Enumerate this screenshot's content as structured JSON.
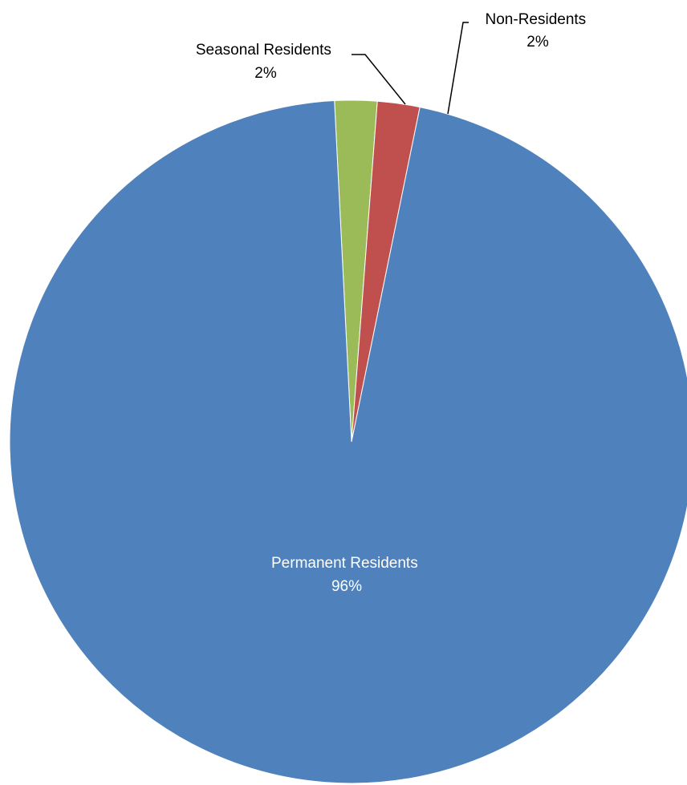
{
  "chart_data": {
    "type": "pie",
    "slices": [
      {
        "label": "Permanent Residents",
        "percent_label": "96%",
        "value": 96,
        "color": "#4f81bd"
      },
      {
        "label": "Seasonal Residents",
        "percent_label": "2%",
        "value": 2,
        "color": "#9bbb59"
      },
      {
        "label": "Non-Residents",
        "percent_label": "2%",
        "value": 2,
        "color": "#c0504d"
      }
    ],
    "label_color_inside": "#ffffff",
    "label_color_outside": "#000000",
    "leader_line_color": "#000000"
  }
}
